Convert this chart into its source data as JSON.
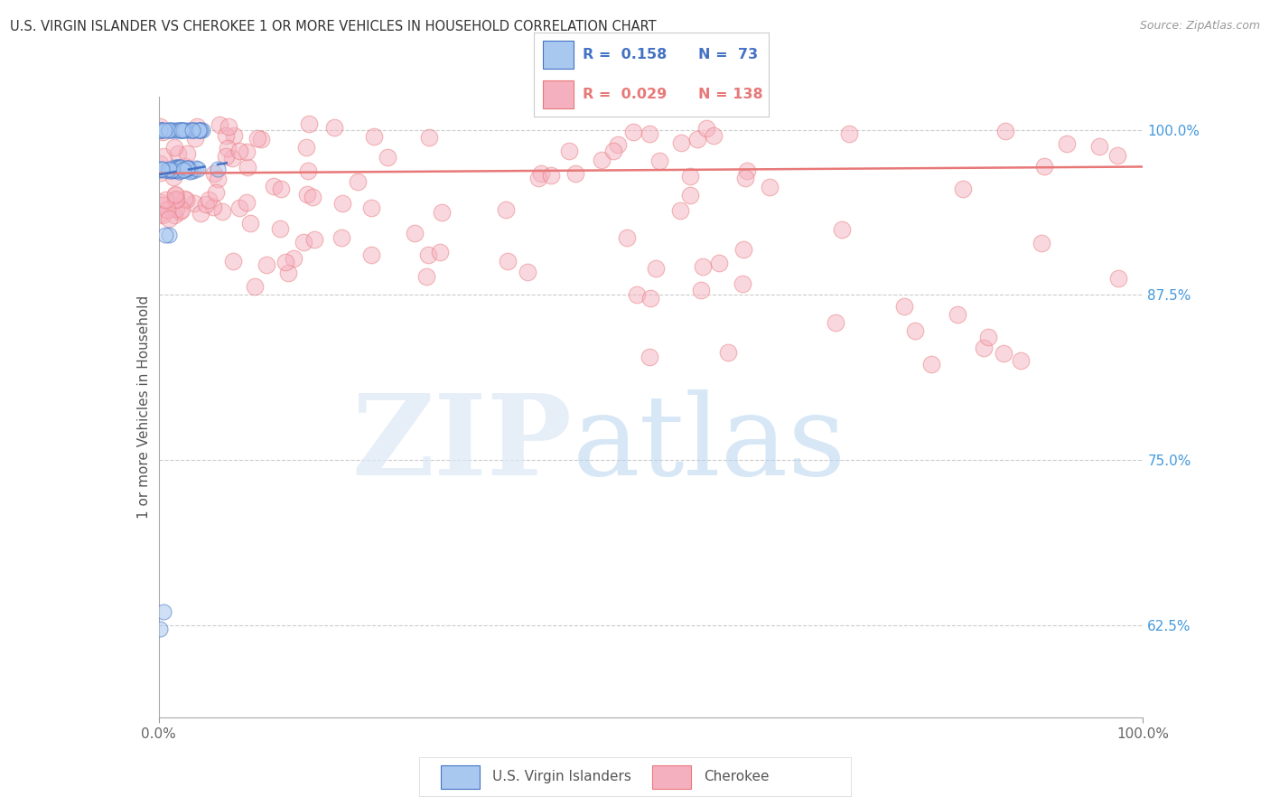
{
  "title": "U.S. VIRGIN ISLANDER VS CHEROKEE 1 OR MORE VEHICLES IN HOUSEHOLD CORRELATION CHART",
  "source": "Source: ZipAtlas.com",
  "ylabel": "1 or more Vehicles in Household",
  "background_color": "#ffffff",
  "legend_r1": "R =  0.158",
  "legend_n1": "N =  73",
  "legend_r2": "R =  0.029",
  "legend_n2": "N = 138",
  "legend_label1": "U.S. Virgin Islanders",
  "legend_label2": "Cherokee",
  "xmin": 0.0,
  "xmax": 1.0,
  "ymin": 0.555,
  "ymax": 1.025,
  "yticks": [
    0.625,
    0.75,
    0.875,
    1.0
  ],
  "ytick_labels": [
    "62.5%",
    "75.0%",
    "87.5%",
    "100.0%"
  ],
  "xtick_labels": [
    "0.0%",
    "100.0%"
  ],
  "xticks": [
    0.0,
    1.0
  ],
  "grid_color": "#cccccc",
  "color_blue": "#a8c8f0",
  "color_pink": "#f5b0c0",
  "trend_blue": "#4472c4",
  "trend_pink": "#e87878",
  "blue_r": 0.158,
  "blue_n": 73,
  "pink_r": 0.029,
  "pink_n": 138,
  "blue_trend_x0": 0.0,
  "blue_trend_x1": 0.07,
  "blue_trend_y0": 0.966,
  "blue_trend_y1": 0.975,
  "pink_trend_x0": 0.0,
  "pink_trend_x1": 1.0,
  "pink_trend_y0": 0.967,
  "pink_trend_y1": 0.972
}
